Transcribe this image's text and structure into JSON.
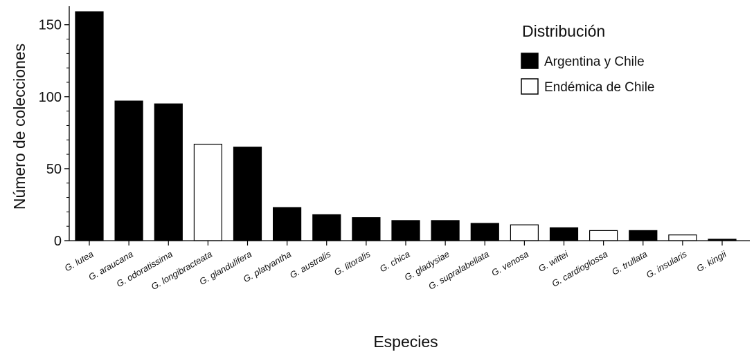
{
  "chart_data": {
    "type": "bar",
    "xlabel": "Especies",
    "ylabel": "Número de colecciones",
    "ylim": [
      0,
      160
    ],
    "yticks": [
      0,
      50,
      100,
      150
    ],
    "grid": false,
    "legend": {
      "title": "Distribución",
      "placement": "top-right",
      "entries": [
        {
          "label": "Argentina y Chile",
          "color": "#000000"
        },
        {
          "label": "Endémica de Chile",
          "color": "#ffffff"
        }
      ]
    },
    "categories": [
      "G. lutea",
      "G. araucana",
      "G. odoratissima",
      "G. longibracteata",
      "G. glandulifera",
      "G. platyantha",
      "G. australis",
      "G. litoralis",
      "G. chica",
      "G. gladysiae",
      "G. supralabellata",
      "G. venosa",
      "G. wittei",
      "G. cardioglossa",
      "G. trullata",
      "G. insularis",
      "G. kingii"
    ],
    "values": [
      159,
      97,
      95,
      67,
      65,
      23,
      18,
      16,
      14,
      14,
      12,
      11,
      9,
      7,
      7,
      4,
      1
    ],
    "distribution": [
      "Argentina y Chile",
      "Argentina y Chile",
      "Argentina y Chile",
      "Endémica de Chile",
      "Argentina y Chile",
      "Argentina y Chile",
      "Argentina y Chile",
      "Argentina y Chile",
      "Argentina y Chile",
      "Argentina y Chile",
      "Argentina y Chile",
      "Endémica de Chile",
      "Argentina y Chile",
      "Endémica de Chile",
      "Argentina y Chile",
      "Endémica de Chile",
      "Argentina y Chile"
    ]
  }
}
